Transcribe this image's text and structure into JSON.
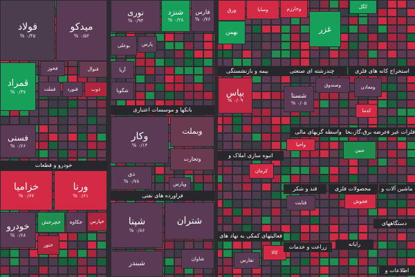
{
  "tiles": [
    {
      "label": "فولاد",
      "change": "۰/۴۵ %",
      "color": "#4b3d4e"
    },
    {
      "label": "میدکو",
      "change": "۰/۵۲ %",
      "color": "#5a3a55"
    },
    {
      "label": "قمراد",
      "change": "۰/۴۷ %",
      "color": "#16a05a"
    },
    {
      "label": "فخوز",
      "color": "#5a3a55"
    },
    {
      "label": "فنوال",
      "color": "#6a3a50"
    },
    {
      "label": "فملت",
      "color": "#5a3a55"
    },
    {
      "label": "فنورد",
      "color": "#5a3a55"
    },
    {
      "label": "ذوب",
      "color": "#b0243e"
    },
    {
      "label": "فسنی",
      "change": "۰/۶۶ %",
      "color": "#5a3a55"
    },
    {
      "label": "خزامیا",
      "change": "۰/۶۷ %",
      "color": "#d42a45"
    },
    {
      "label": "ورنا",
      "change": "۰/۶۱ %",
      "color": "#d42a45"
    },
    {
      "label": "خودرو",
      "change": "۰/۶۸ %",
      "color": "#5a3a55"
    },
    {
      "label": "خچرخش",
      "color": "#1e8f4e"
    },
    {
      "label": "خکاوه",
      "color": "#5a3a55"
    },
    {
      "label": "خپارس",
      "color": "#b0243e"
    },
    {
      "label": "ختور",
      "color": "#b0243e"
    },
    {
      "label": "نوری",
      "change": "۰/۹۴ %",
      "color": "#5a3a55"
    },
    {
      "label": "شنزد",
      "change": "۰/۲۸ %",
      "color": "#17a05a"
    },
    {
      "label": "فارس",
      "change": "۰/۷۶ %",
      "color": "#5a3a55"
    },
    {
      "label": "پارس",
      "color": "#5a3a55"
    },
    {
      "label": "بوعلی",
      "color": "#5a3a55"
    },
    {
      "label": "آریا",
      "color": "#5a3a55"
    },
    {
      "label": "شگویا",
      "color": "#5a3a55"
    },
    {
      "label": "وکار",
      "change": "۰/۱۴ %",
      "color": "#5a3a55"
    },
    {
      "label": "وبملت",
      "color": "#6a3a50"
    },
    {
      "label": "وتجارت",
      "color": "#6a3a50"
    },
    {
      "label": "دی",
      "change": "۰/۷۸ %",
      "color": "#5a3a55"
    },
    {
      "label": "وپارس",
      "color": "#5a3a55"
    },
    {
      "label": "شپنا",
      "change": "۰/۸۶ %",
      "color": "#5a3a55"
    },
    {
      "label": "شتران",
      "color": "#5a3a55"
    },
    {
      "label": "شاوان",
      "color": "#5a3a55"
    },
    {
      "label": "شبندر",
      "color": "#5a3a55"
    },
    {
      "label": "ورق",
      "color": "#d42a45"
    },
    {
      "label": "وسایا",
      "color": "#d42a45"
    },
    {
      "label": "وخارزم",
      "color": "#d42a45"
    },
    {
      "label": "بهمن",
      "color": "#17a05a"
    },
    {
      "label": "غزر",
      "color": "#17a05a"
    },
    {
      "label": "کگل",
      "color": "#17a05a"
    },
    {
      "label": "بپاس",
      "change": "۰/۰۹ %",
      "color": "#c02843"
    },
    {
      "label": "شستا",
      "change": "۰/۰۵ %",
      "color": "#5a3a55"
    },
    {
      "label": "وصندوق",
      "color": "#5a3a55"
    },
    {
      "label": "ومعادن",
      "color": "#5a3a55"
    },
    {
      "label": "کدما",
      "color": "#d42a45"
    },
    {
      "label": "واحیا",
      "color": "#d42a45"
    },
    {
      "label": "مبین",
      "color": "#1e8f4e"
    },
    {
      "label": "کرمان",
      "color": "#d42a45"
    },
    {
      "label": "قثابت",
      "color": "#5a3a55"
    },
    {
      "label": "فجوش",
      "color": "#d42a45"
    },
    {
      "label": "تفارس",
      "color": "#5a3a55"
    },
    {
      "label": "کالا",
      "color": "#d42a45"
    }
  ],
  "sectors": [
    "خودرو و قطعات",
    "بانکها و موسسات اعتباری",
    "فراورده های نفتی",
    "بیمه و بازنشستگی",
    "چندرشته ای صنعتی",
    "استخراج کانه های فلزی",
    "عرضه برق،گاز،بخار",
    "واسطه گریهای مالی",
    "فلزات غیر فلزی",
    "انبوه سازی املاک و",
    "قند و شکر",
    "محصولات فلزی",
    "ماشین آلات و",
    "دستگاههای",
    "فعالیتهای کمکی به نهاد های",
    "زراعت و خدمات",
    "رایانه",
    "اطلاعات و"
  ]
}
